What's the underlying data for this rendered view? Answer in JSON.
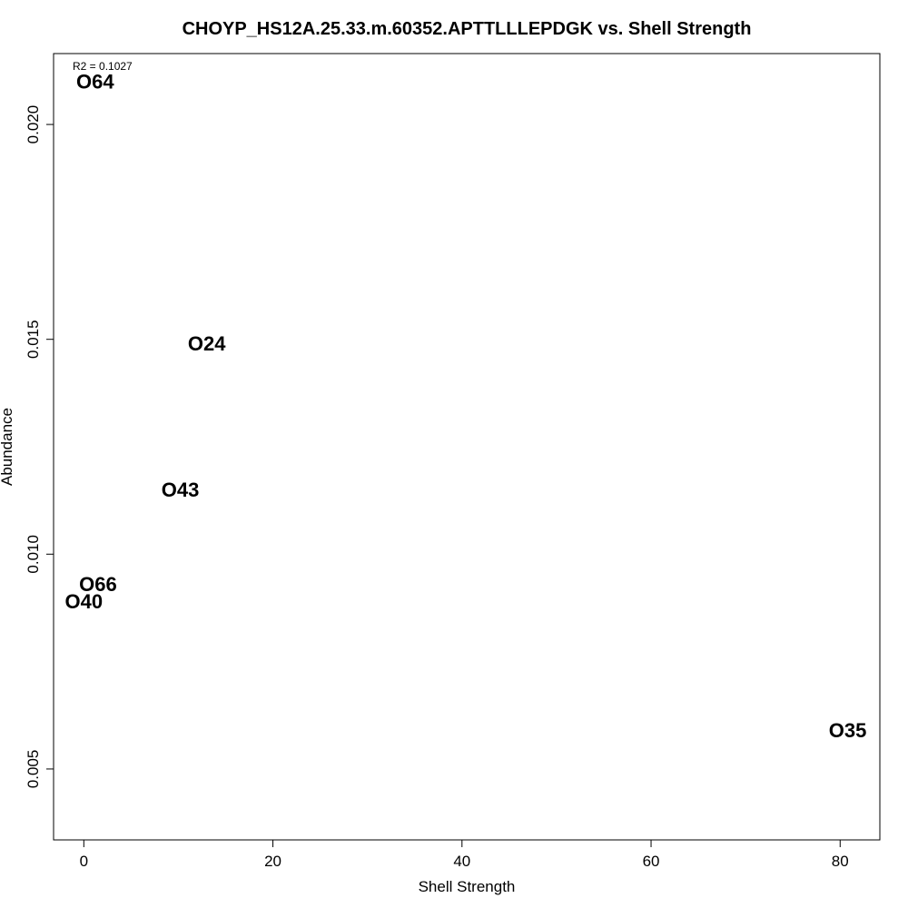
{
  "chart_data": {
    "type": "scatter",
    "title": "CHOYP_HS12A.25.33.m.60352.APTTLLLEPDGK vs. Shell Strength",
    "xlabel": "Shell Strength",
    "ylabel": "Abundance",
    "xlim": [
      -3.2,
      84.2
    ],
    "ylim": [
      0.00335,
      0.02165
    ],
    "x_ticks": [
      0,
      20,
      40,
      60,
      80
    ],
    "x_tick_labels": [
      "0",
      "20",
      "40",
      "60",
      "80"
    ],
    "y_ticks": [
      0.005,
      0.01,
      0.015,
      0.02
    ],
    "y_tick_labels": [
      "0.005",
      "0.010",
      "0.015",
      "0.020"
    ],
    "grid": false,
    "legend": "none",
    "marker": "text-label",
    "annotation": "R2 = 0.1027",
    "points": [
      {
        "label": "O64",
        "x": 1.2,
        "y": 0.021
      },
      {
        "label": "O24",
        "x": 13.0,
        "y": 0.0149
      },
      {
        "label": "O43",
        "x": 10.2,
        "y": 0.0115
      },
      {
        "label": "O66",
        "x": 1.5,
        "y": 0.0093
      },
      {
        "label": "O40",
        "x": 0.0,
        "y": 0.0089
      },
      {
        "label": "O35",
        "x": 80.8,
        "y": 0.0059
      }
    ]
  }
}
